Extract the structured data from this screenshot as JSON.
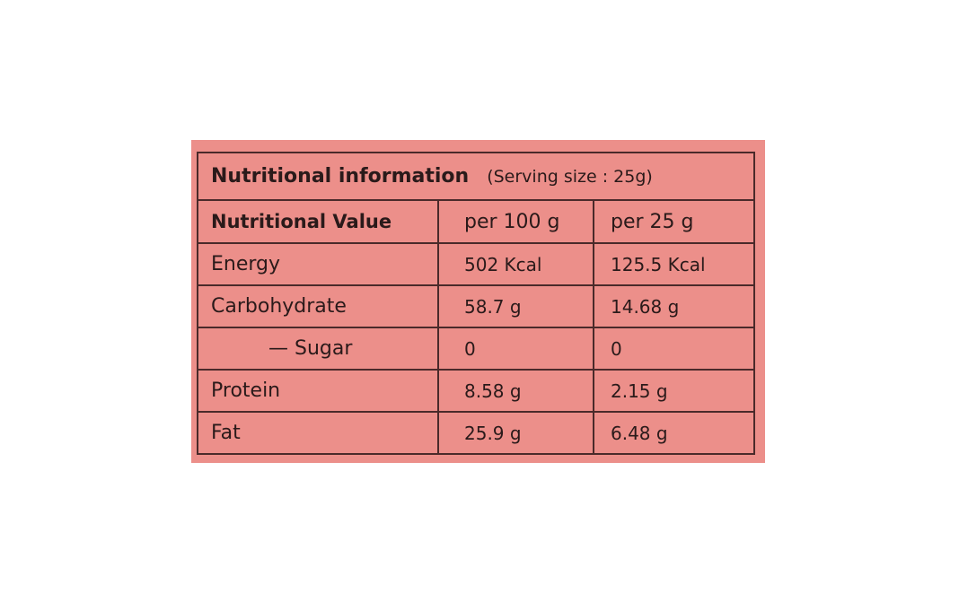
{
  "table": {
    "title": "Nutritional information",
    "serving": "(Serving size : 25g)",
    "header": [
      "Nutritional Value",
      "per 100 g",
      "per 25 g"
    ],
    "rows": [
      [
        "Energy",
        "502 Kcal",
        "125.5 Kcal"
      ],
      [
        "Carbohydrate",
        "58.7 g",
        "14.68 g"
      ],
      [
        "— Sugar",
        "0",
        "0"
      ],
      [
        "Protein",
        "8.58 g",
        "2.15 g"
      ],
      [
        "Fat",
        "25.9 g",
        "6.48 g"
      ]
    ]
  }
}
